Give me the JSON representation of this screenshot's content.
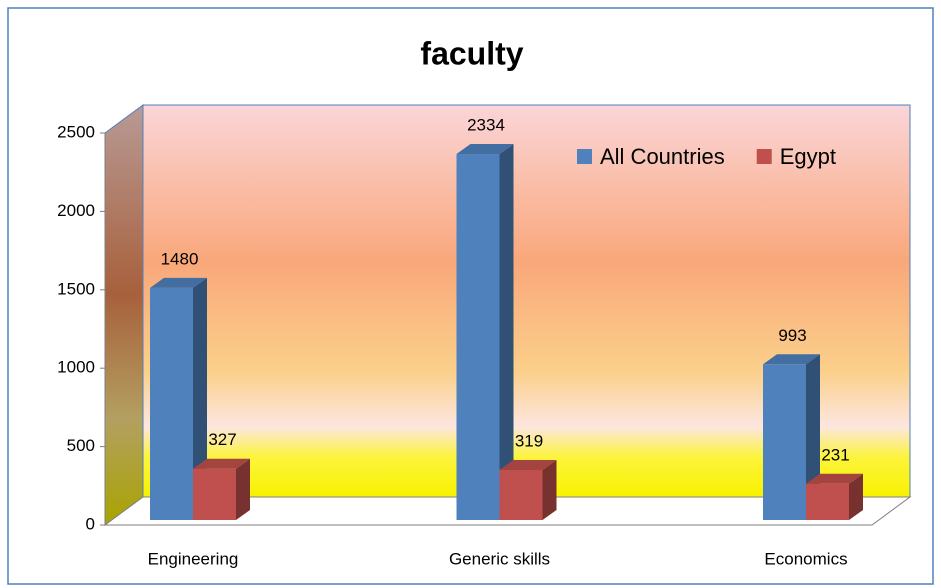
{
  "chart_data": {
    "type": "bar",
    "title": "faculty",
    "categories": [
      "Engineering",
      "Generic skills",
      "Economics"
    ],
    "series": [
      {
        "name": "All Countries",
        "color": "#4f81bd",
        "values": [
          1480,
          2334,
          993
        ]
      },
      {
        "name": "Egypt",
        "color": "#c0504d",
        "values": [
          327,
          319,
          231
        ]
      }
    ],
    "ylim": [
      0,
      2500
    ],
    "yticks": [
      0,
      500,
      1000,
      1500,
      2000,
      2500
    ],
    "legend": "top-right"
  }
}
